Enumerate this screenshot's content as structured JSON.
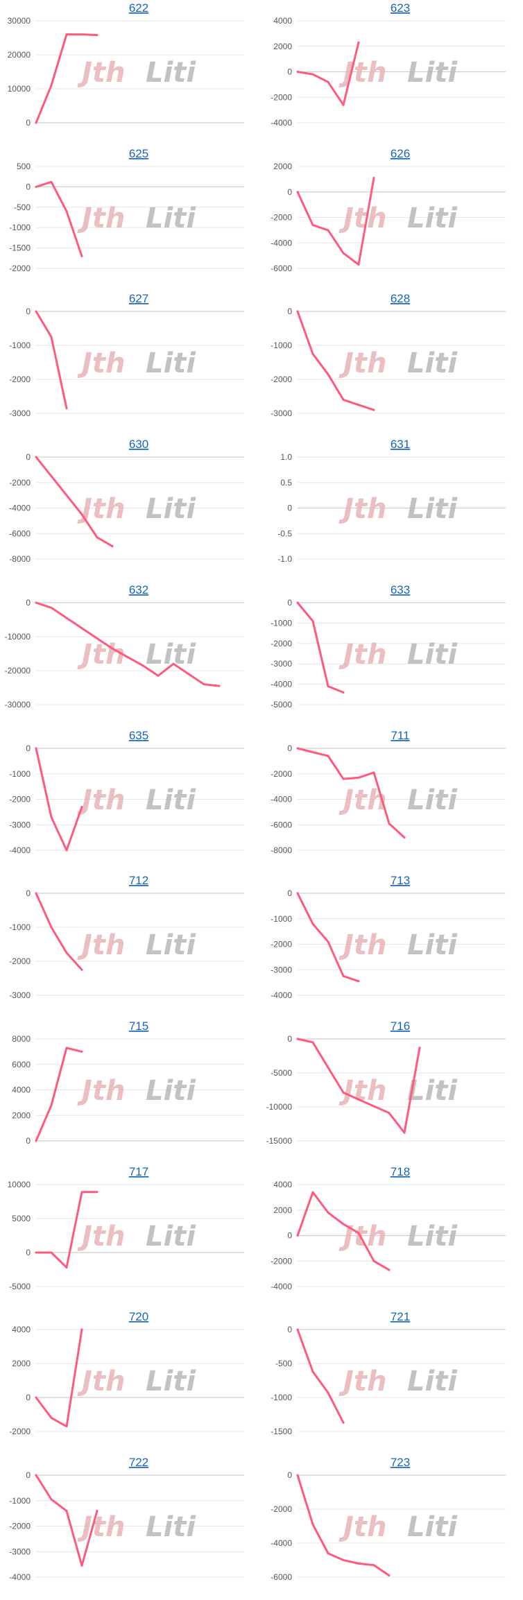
{
  "colors": {
    "line": "#ff5a7e",
    "title": "#1565c0",
    "watermark_left": "#e8b4b4",
    "watermark_right": "#b8b8b8"
  },
  "watermark": {
    "left": "Jth",
    "right": "Liti"
  },
  "chart_data": [
    {
      "type": "line",
      "title": "622",
      "ylim": [
        0,
        30000
      ],
      "yticks": [
        0,
        10000,
        20000,
        30000
      ],
      "tick_labels": [
        "0",
        "10000",
        "20000",
        "30000"
      ],
      "series": [
        {
          "values": [
            0,
            11000,
            26000,
            26000,
            25800
          ]
        }
      ]
    },
    {
      "type": "line",
      "title": "623",
      "ylim": [
        -4000,
        4000
      ],
      "yticks": [
        -4000,
        -2000,
        0,
        2000,
        4000
      ],
      "tick_labels": [
        "-4000",
        "-2000",
        "0",
        "2000",
        "4000"
      ],
      "series": [
        {
          "values": [
            0,
            -200,
            -800,
            -2600,
            2300
          ]
        }
      ]
    },
    {
      "type": "line",
      "title": "625",
      "ylim": [
        -2000,
        500
      ],
      "yticks": [
        -2000,
        -1500,
        -1000,
        -500,
        0,
        500
      ],
      "tick_labels": [
        "-2000",
        "-1500",
        "-1000",
        "-500",
        "0",
        "500"
      ],
      "series": [
        {
          "values": [
            0,
            120,
            -600,
            -1700
          ]
        }
      ]
    },
    {
      "type": "line",
      "title": "626",
      "ylim": [
        -6000,
        2000
      ],
      "yticks": [
        -6000,
        -4000,
        -2000,
        0,
        2000
      ],
      "tick_labels": [
        "-6000",
        "-4000",
        "-2000",
        "0",
        "2000"
      ],
      "series": [
        {
          "values": [
            0,
            -2600,
            -3000,
            -4800,
            -5700,
            1100
          ]
        }
      ]
    },
    {
      "type": "line",
      "title": "627",
      "ylim": [
        -3000,
        0
      ],
      "yticks": [
        -3000,
        -2000,
        -1000,
        0
      ],
      "tick_labels": [
        "-3000",
        "-2000",
        "-1000",
        "0"
      ],
      "series": [
        {
          "values": [
            0,
            -750,
            -2850
          ]
        }
      ]
    },
    {
      "type": "line",
      "title": "628",
      "ylim": [
        -3000,
        0
      ],
      "yticks": [
        -3000,
        -2000,
        -1000,
        0
      ],
      "tick_labels": [
        "-3000",
        "-2000",
        "-1000",
        "0"
      ],
      "series": [
        {
          "values": [
            0,
            -1250,
            -1850,
            -2600,
            -2750,
            -2900
          ]
        }
      ]
    },
    {
      "type": "line",
      "title": "630",
      "ylim": [
        -8000,
        0
      ],
      "yticks": [
        -8000,
        -6000,
        -4000,
        -2000,
        0
      ],
      "tick_labels": [
        "-8000",
        "-6000",
        "-4000",
        "-2000",
        "0"
      ],
      "series": [
        {
          "values": [
            0,
            -1500,
            -3000,
            -4500,
            -6300,
            -7000
          ]
        }
      ]
    },
    {
      "type": "line",
      "title": "631",
      "ylim": [
        -1.0,
        1.0
      ],
      "yticks": [
        -1.0,
        -0.5,
        0,
        0.5,
        1.0
      ],
      "tick_labels": [
        "-1.0",
        "-0.5",
        "0",
        "0.5",
        "1.0"
      ],
      "series": [
        {
          "values": []
        }
      ]
    },
    {
      "type": "line",
      "title": "632",
      "ylim": [
        -30000,
        0
      ],
      "yticks": [
        -30000,
        -20000,
        -10000,
        0
      ],
      "tick_labels": [
        "-30000",
        "-20000",
        "-10000",
        "0"
      ],
      "series": [
        {
          "values": [
            0,
            -1500,
            -4500,
            -7500,
            -10500,
            -13500,
            -16000,
            -18500,
            -21500,
            -18000,
            -21000,
            -24000,
            -24500
          ]
        }
      ]
    },
    {
      "type": "line",
      "title": "633",
      "ylim": [
        -5000,
        0
      ],
      "yticks": [
        -5000,
        -4000,
        -3000,
        -2000,
        -1000,
        0
      ],
      "tick_labels": [
        "-5000",
        "-4000",
        "-3000",
        "-2000",
        "-1000",
        "0"
      ],
      "series": [
        {
          "values": [
            0,
            -900,
            -4100,
            -4400
          ]
        }
      ]
    },
    {
      "type": "line",
      "title": "635",
      "ylim": [
        -4000,
        0
      ],
      "yticks": [
        -4000,
        -3000,
        -2000,
        -1000,
        0
      ],
      "tick_labels": [
        "-4000",
        "-3000",
        "-2000",
        "-1000",
        "0"
      ],
      "series": [
        {
          "values": [
            0,
            -2700,
            -4000,
            -2300
          ]
        }
      ]
    },
    {
      "type": "line",
      "title": "711",
      "ylim": [
        -8000,
        0
      ],
      "yticks": [
        -8000,
        -6000,
        -4000,
        -2000,
        0
      ],
      "tick_labels": [
        "-8000",
        "-6000",
        "-4000",
        "-2000",
        "0"
      ],
      "series": [
        {
          "values": [
            0,
            -300,
            -600,
            -2400,
            -2300,
            -1900,
            -5900,
            -7000
          ]
        }
      ]
    },
    {
      "type": "line",
      "title": "712",
      "ylim": [
        -3000,
        0
      ],
      "yticks": [
        -3000,
        -2000,
        -1000,
        0
      ],
      "tick_labels": [
        "-3000",
        "-2000",
        "-1000",
        "0"
      ],
      "series": [
        {
          "values": [
            0,
            -1000,
            -1750,
            -2250
          ]
        }
      ]
    },
    {
      "type": "line",
      "title": "713",
      "ylim": [
        -4000,
        0
      ],
      "yticks": [
        -4000,
        -3000,
        -2000,
        -1000,
        0
      ],
      "tick_labels": [
        "-4000",
        "-3000",
        "-2000",
        "-1000",
        "0"
      ],
      "series": [
        {
          "values": [
            0,
            -1200,
            -1900,
            -3250,
            -3450
          ]
        }
      ]
    },
    {
      "type": "line",
      "title": "715",
      "ylim": [
        0,
        8000
      ],
      "yticks": [
        0,
        2000,
        4000,
        6000,
        8000
      ],
      "tick_labels": [
        "0",
        "2000",
        "4000",
        "6000",
        "8000"
      ],
      "series": [
        {
          "values": [
            0,
            2800,
            7300,
            7000
          ]
        }
      ]
    },
    {
      "type": "line",
      "title": "716",
      "ylim": [
        -15000,
        0
      ],
      "yticks": [
        -15000,
        -10000,
        -5000,
        0
      ],
      "tick_labels": [
        "-15000",
        "-10000",
        "-5000",
        "0"
      ],
      "series": [
        {
          "values": [
            0,
            -500,
            -4200,
            -7900,
            -8900,
            -9900,
            -10900,
            -13800,
            -1300
          ]
        }
      ]
    },
    {
      "type": "line",
      "title": "717",
      "ylim": [
        -5000,
        10000
      ],
      "yticks": [
        -5000,
        0,
        5000,
        10000
      ],
      "tick_labels": [
        "-5000",
        "0",
        "5000",
        "10000"
      ],
      "series": [
        {
          "values": [
            0,
            0,
            -2200,
            8900,
            8900
          ]
        }
      ]
    },
    {
      "type": "line",
      "title": "718",
      "ylim": [
        -4000,
        4000
      ],
      "yticks": [
        -4000,
        -2000,
        0,
        2000,
        4000
      ],
      "tick_labels": [
        "-4000",
        "-2000",
        "0",
        "2000",
        "4000"
      ],
      "series": [
        {
          "values": [
            0,
            3400,
            1800,
            900,
            200,
            -2000,
            -2700
          ]
        }
      ]
    },
    {
      "type": "line",
      "title": "720",
      "ylim": [
        -2000,
        4000
      ],
      "yticks": [
        -2000,
        0,
        2000,
        4000
      ],
      "tick_labels": [
        "-2000",
        "0",
        "2000",
        "4000"
      ],
      "series": [
        {
          "values": [
            0,
            -1200,
            -1700,
            4000
          ]
        }
      ]
    },
    {
      "type": "line",
      "title": "721",
      "ylim": [
        -1500,
        0
      ],
      "yticks": [
        -1500,
        -1000,
        -500,
        0
      ],
      "tick_labels": [
        "-1500",
        "-1000",
        "-500",
        "0"
      ],
      "series": [
        {
          "values": [
            0,
            -620,
            -930,
            -1370
          ]
        }
      ]
    },
    {
      "type": "line",
      "title": "722",
      "ylim": [
        -4000,
        0
      ],
      "yticks": [
        -4000,
        -3000,
        -2000,
        -1000,
        0
      ],
      "tick_labels": [
        "-4000",
        "-3000",
        "-2000",
        "-1000",
        "0"
      ],
      "series": [
        {
          "values": [
            0,
            -950,
            -1400,
            -3550,
            -1400
          ]
        }
      ]
    },
    {
      "type": "line",
      "title": "723",
      "ylim": [
        -6000,
        0
      ],
      "yticks": [
        -6000,
        -4000,
        -2000,
        0
      ],
      "tick_labels": [
        "-6000",
        "-4000",
        "-2000",
        "0"
      ],
      "series": [
        {
          "values": [
            0,
            -2900,
            -4600,
            -5000,
            -5200,
            -5300,
            -5900
          ]
        }
      ]
    }
  ]
}
